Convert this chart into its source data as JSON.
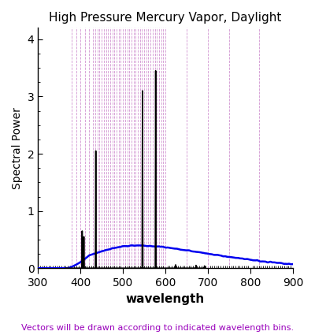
{
  "title": "High Pressure Mercury Vapor, Daylight",
  "xlabel": "wavelength",
  "ylabel": "Spectral Power",
  "xlim": [
    300,
    900
  ],
  "ylim": [
    0,
    4.2
  ],
  "yticks": [
    0,
    1,
    2,
    3,
    4
  ],
  "xticks": [
    300,
    400,
    500,
    600,
    700,
    800,
    900
  ],
  "annotation": "Vectors will be drawn according to indicated wavelength bins.",
  "annotation_color": "#9900BB",
  "vline_color": "#CC88CC",
  "mercury_lines": [
    [
      365,
      0.0
    ],
    [
      366,
      0.0
    ],
    [
      395,
      0.0
    ],
    [
      396,
      0.0
    ],
    [
      400,
      0.0
    ],
    [
      403,
      0.0
    ],
    [
      404,
      0.65
    ],
    [
      405,
      0.0
    ],
    [
      407,
      0.0
    ],
    [
      408,
      0.55
    ],
    [
      409,
      0.0
    ],
    [
      433,
      0.0
    ],
    [
      434,
      0.0
    ],
    [
      435,
      0.0
    ],
    [
      436,
      2.05
    ],
    [
      437,
      0.0
    ],
    [
      438,
      0.0
    ],
    [
      543,
      0.0
    ],
    [
      544,
      0.0
    ],
    [
      545,
      0.0
    ],
    [
      546,
      3.1
    ],
    [
      547,
      0.0
    ],
    [
      548,
      0.0
    ],
    [
      574,
      0.0
    ],
    [
      575,
      0.0
    ],
    [
      576,
      0.0
    ],
    [
      577,
      3.45
    ],
    [
      578,
      0.0
    ],
    [
      579,
      0.0
    ],
    [
      621,
      0.0
    ],
    [
      622,
      0.0
    ],
    [
      623,
      0.0
    ],
    [
      624,
      0.06
    ],
    [
      625,
      0.0
    ],
    [
      670,
      0.0
    ],
    [
      671,
      0.0
    ],
    [
      672,
      0.05
    ],
    [
      673,
      0.0
    ],
    [
      690,
      0.0
    ],
    [
      691,
      0.0
    ],
    [
      692,
      0.04
    ],
    [
      693,
      0.0
    ]
  ],
  "mercury_color": "#000000",
  "daylight_color": "#0000EE",
  "background_color": "#FFFFFF",
  "vlines_group1": [
    380,
    390,
    400,
    410,
    420
  ],
  "vlines_group2_start": 430,
  "vlines_group2_end": 600,
  "vlines_group2_step": 5,
  "vlines_group3": [
    650,
    700,
    750,
    820
  ]
}
